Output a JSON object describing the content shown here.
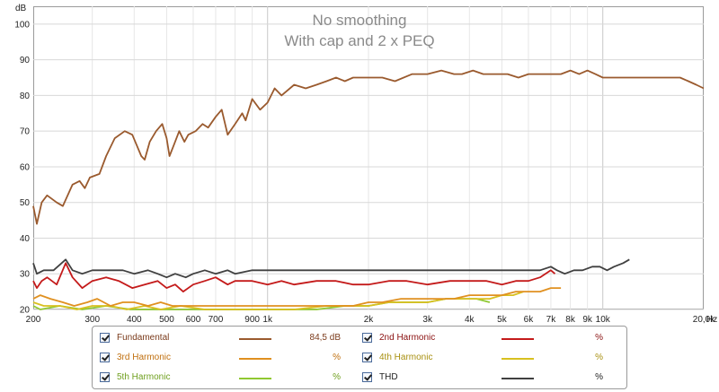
{
  "chart_data": {
    "type": "line",
    "title": "No smoothing",
    "subtitle": "With cap and 2 x PEQ",
    "y_unit": "dB",
    "x_unit": "Hz",
    "xscale": "log",
    "xlim": [
      200,
      20000
    ],
    "ylim": [
      20,
      105
    ],
    "grid": true,
    "x_tick_labels": [
      {
        "x": 200,
        "label": "200"
      },
      {
        "x": 300,
        "label": "300"
      },
      {
        "x": 400,
        "label": "400"
      },
      {
        "x": 500,
        "label": "500"
      },
      {
        "x": 600,
        "label": "600"
      },
      {
        "x": 700,
        "label": "700"
      },
      {
        "x": 900,
        "label": "900"
      },
      {
        "x": 1000,
        "label": "1k"
      },
      {
        "x": 2000,
        "label": "2k"
      },
      {
        "x": 3000,
        "label": "3k"
      },
      {
        "x": 4000,
        "label": "4k"
      },
      {
        "x": 5000,
        "label": "5k"
      },
      {
        "x": 6000,
        "label": "6k"
      },
      {
        "x": 7000,
        "label": "7k"
      },
      {
        "x": 8000,
        "label": "8k"
      },
      {
        "x": 9000,
        "label": "9k"
      },
      {
        "x": 10000,
        "label": "10k"
      },
      {
        "x": 20000,
        "label": "20,0k"
      }
    ],
    "y_ticks": [
      20,
      30,
      40,
      50,
      60,
      70,
      80,
      90,
      100
    ],
    "series": [
      {
        "name": "Fundamental",
        "color": "#9a5a2e",
        "points": [
          [
            200,
            49
          ],
          [
            205,
            44
          ],
          [
            212,
            50
          ],
          [
            220,
            52
          ],
          [
            235,
            50
          ],
          [
            245,
            49
          ],
          [
            262,
            55
          ],
          [
            275,
            56
          ],
          [
            285,
            54
          ],
          [
            295,
            57
          ],
          [
            315,
            58
          ],
          [
            330,
            63
          ],
          [
            350,
            68
          ],
          [
            375,
            70
          ],
          [
            395,
            69
          ],
          [
            420,
            63
          ],
          [
            430,
            62
          ],
          [
            445,
            67
          ],
          [
            465,
            70
          ],
          [
            485,
            72
          ],
          [
            500,
            68
          ],
          [
            510,
            63
          ],
          [
            525,
            66
          ],
          [
            545,
            70
          ],
          [
            565,
            67
          ],
          [
            580,
            69
          ],
          [
            610,
            70
          ],
          [
            640,
            72
          ],
          [
            665,
            71
          ],
          [
            700,
            74
          ],
          [
            730,
            76
          ],
          [
            760,
            69
          ],
          [
            800,
            72
          ],
          [
            840,
            75
          ],
          [
            860,
            73
          ],
          [
            900,
            79
          ],
          [
            950,
            76
          ],
          [
            1000,
            78
          ],
          [
            1050,
            82
          ],
          [
            1100,
            80
          ],
          [
            1200,
            83
          ],
          [
            1300,
            82
          ],
          [
            1400,
            83
          ],
          [
            1500,
            84
          ],
          [
            1600,
            85
          ],
          [
            1700,
            84
          ],
          [
            1800,
            85
          ],
          [
            2000,
            85
          ],
          [
            2200,
            85
          ],
          [
            2400,
            84
          ],
          [
            2700,
            86
          ],
          [
            3000,
            86
          ],
          [
            3300,
            87
          ],
          [
            3600,
            86
          ],
          [
            3800,
            86
          ],
          [
            4100,
            87
          ],
          [
            4400,
            86
          ],
          [
            4800,
            86
          ],
          [
            5200,
            86
          ],
          [
            5600,
            85
          ],
          [
            6000,
            86
          ],
          [
            6500,
            86
          ],
          [
            7000,
            86
          ],
          [
            7500,
            86
          ],
          [
            8000,
            87
          ],
          [
            8500,
            86
          ],
          [
            9000,
            87
          ],
          [
            9500,
            86
          ],
          [
            10000,
            85
          ],
          [
            11000,
            85
          ],
          [
            12000,
            85
          ],
          [
            13000,
            85
          ],
          [
            14000,
            85
          ],
          [
            15000,
            85
          ],
          [
            16000,
            85
          ],
          [
            17000,
            85
          ],
          [
            18000,
            84
          ],
          [
            19000,
            83
          ],
          [
            20000,
            82
          ]
        ]
      },
      {
        "name": "2nd Harmonic",
        "color": "#c41a1a",
        "points": [
          [
            200,
            28
          ],
          [
            205,
            26
          ],
          [
            212,
            28
          ],
          [
            220,
            29
          ],
          [
            235,
            27
          ],
          [
            250,
            33
          ],
          [
            262,
            29
          ],
          [
            280,
            26
          ],
          [
            300,
            28
          ],
          [
            330,
            29
          ],
          [
            360,
            28
          ],
          [
            395,
            26
          ],
          [
            430,
            27
          ],
          [
            470,
            28
          ],
          [
            500,
            26
          ],
          [
            530,
            27
          ],
          [
            560,
            25
          ],
          [
            600,
            27
          ],
          [
            650,
            28
          ],
          [
            700,
            29
          ],
          [
            760,
            27
          ],
          [
            800,
            28
          ],
          [
            900,
            28
          ],
          [
            1000,
            27
          ],
          [
            1100,
            28
          ],
          [
            1200,
            27
          ],
          [
            1400,
            28
          ],
          [
            1600,
            28
          ],
          [
            1800,
            27
          ],
          [
            2000,
            27
          ],
          [
            2300,
            28
          ],
          [
            2600,
            28
          ],
          [
            3000,
            27
          ],
          [
            3500,
            28
          ],
          [
            4000,
            28
          ],
          [
            4500,
            28
          ],
          [
            5000,
            27
          ],
          [
            5500,
            28
          ],
          [
            6000,
            28
          ],
          [
            6500,
            29
          ],
          [
            7000,
            31
          ],
          [
            7200,
            30
          ]
        ]
      },
      {
        "name": "3rd Harmonic",
        "color": "#e09020",
        "points": [
          [
            200,
            23
          ],
          [
            210,
            24
          ],
          [
            225,
            23
          ],
          [
            245,
            22
          ],
          [
            265,
            21
          ],
          [
            290,
            22
          ],
          [
            310,
            23
          ],
          [
            340,
            21
          ],
          [
            370,
            22
          ],
          [
            400,
            22
          ],
          [
            440,
            21
          ],
          [
            480,
            22
          ],
          [
            520,
            21
          ],
          [
            560,
            21
          ],
          [
            600,
            21
          ],
          [
            650,
            21
          ],
          [
            700,
            21
          ],
          [
            800,
            21
          ],
          [
            900,
            21
          ],
          [
            1000,
            21
          ],
          [
            1200,
            21
          ],
          [
            1400,
            21
          ],
          [
            1600,
            21
          ],
          [
            1800,
            21
          ],
          [
            2000,
            22
          ],
          [
            2200,
            22
          ],
          [
            2500,
            23
          ],
          [
            2800,
            23
          ],
          [
            3200,
            23
          ],
          [
            3600,
            23
          ],
          [
            4000,
            24
          ],
          [
            4500,
            24
          ],
          [
            5000,
            24
          ],
          [
            5500,
            25
          ],
          [
            6000,
            25
          ],
          [
            6500,
            25
          ],
          [
            7000,
            26
          ],
          [
            7500,
            26
          ]
        ]
      },
      {
        "name": "4th Harmonic",
        "color": "#d8c020",
        "points": [
          [
            200,
            22
          ],
          [
            215,
            21
          ],
          [
            240,
            21
          ],
          [
            270,
            20
          ],
          [
            300,
            21
          ],
          [
            340,
            21
          ],
          [
            380,
            20
          ],
          [
            430,
            21
          ],
          [
            480,
            20
          ],
          [
            550,
            21
          ],
          [
            650,
            20
          ],
          [
            800,
            20
          ],
          [
            1000,
            20
          ],
          [
            1200,
            20
          ],
          [
            1500,
            21
          ],
          [
            1800,
            21
          ],
          [
            2000,
            21
          ],
          [
            2300,
            22
          ],
          [
            2600,
            22
          ],
          [
            3000,
            22
          ],
          [
            3400,
            23
          ],
          [
            3800,
            23
          ],
          [
            4200,
            23
          ],
          [
            4600,
            23
          ],
          [
            5000,
            24
          ],
          [
            5400,
            24
          ],
          [
            5800,
            25
          ]
        ]
      },
      {
        "name": "5th Harmonic",
        "color": "#90c830",
        "points": [
          [
            200,
            21
          ],
          [
            210,
            20
          ],
          [
            240,
            21
          ],
          [
            280,
            20
          ],
          [
            330,
            21
          ],
          [
            390,
            20
          ],
          [
            460,
            20
          ],
          [
            560,
            20
          ],
          [
            700,
            20
          ],
          [
            900,
            20
          ],
          [
            1100,
            20
          ],
          [
            1400,
            20
          ],
          [
            1700,
            21
          ],
          [
            2000,
            21
          ],
          [
            2300,
            22
          ],
          [
            2600,
            22
          ],
          [
            3000,
            22
          ],
          [
            3400,
            23
          ],
          [
            3800,
            23
          ],
          [
            4200,
            23
          ],
          [
            4600,
            22
          ]
        ]
      },
      {
        "name": "THD",
        "color": "#404040",
        "points": [
          [
            200,
            33
          ],
          [
            205,
            30
          ],
          [
            215,
            31
          ],
          [
            230,
            31
          ],
          [
            250,
            34
          ],
          [
            262,
            31
          ],
          [
            280,
            30
          ],
          [
            300,
            31
          ],
          [
            330,
            31
          ],
          [
            370,
            31
          ],
          [
            400,
            30
          ],
          [
            440,
            31
          ],
          [
            470,
            30
          ],
          [
            500,
            29
          ],
          [
            530,
            30
          ],
          [
            570,
            29
          ],
          [
            600,
            30
          ],
          [
            650,
            31
          ],
          [
            700,
            30
          ],
          [
            760,
            31
          ],
          [
            800,
            30
          ],
          [
            900,
            31
          ],
          [
            1000,
            31
          ],
          [
            1100,
            31
          ],
          [
            1200,
            31
          ],
          [
            1400,
            31
          ],
          [
            1600,
            31
          ],
          [
            1800,
            31
          ],
          [
            2000,
            31
          ],
          [
            2300,
            31
          ],
          [
            2600,
            31
          ],
          [
            3000,
            31
          ],
          [
            3500,
            31
          ],
          [
            4000,
            31
          ],
          [
            4500,
            31
          ],
          [
            5000,
            31
          ],
          [
            5500,
            31
          ],
          [
            6000,
            31
          ],
          [
            6500,
            31
          ],
          [
            7000,
            32
          ],
          [
            7300,
            31
          ],
          [
            7700,
            30
          ],
          [
            8200,
            31
          ],
          [
            8700,
            31
          ],
          [
            9300,
            32
          ],
          [
            9800,
            32
          ],
          [
            10300,
            31
          ],
          [
            10800,
            32
          ],
          [
            11500,
            33
          ],
          [
            12000,
            34
          ]
        ]
      }
    ]
  },
  "legend": {
    "items": [
      {
        "name": "Fundamental",
        "color": "#9a5a2e",
        "value": "84,5 dB",
        "label_color": "#7a3a1a"
      },
      {
        "name": "2nd Harmonic",
        "color": "#c41a1a",
        "value": "%",
        "label_color": "#8a1010"
      },
      {
        "name": "3rd Harmonic",
        "color": "#e09020",
        "value": "%",
        "label_color": "#c07010"
      },
      {
        "name": "4th Harmonic",
        "color": "#d8c020",
        "value": "%",
        "label_color": "#a89010"
      },
      {
        "name": "5th Harmonic",
        "color": "#90c830",
        "value": "%",
        "label_color": "#70a020"
      },
      {
        "name": "THD",
        "color": "#404040",
        "value": "%",
        "label_color": "#222222"
      }
    ]
  }
}
